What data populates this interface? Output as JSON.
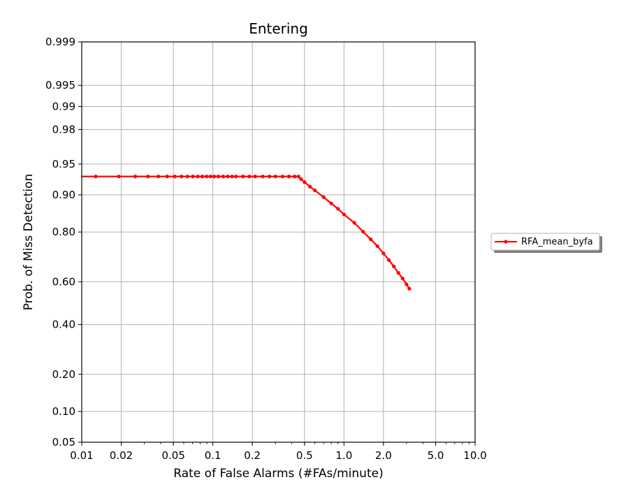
{
  "chart_data": {
    "type": "line",
    "title": "Entering",
    "xlabel": "Rate of False Alarms (#FAs/minute)",
    "ylabel": "Prob. of Miss Detection",
    "x_scale": "log",
    "y_scale": "normal-deviate",
    "xlim": [
      0.01,
      10.0
    ],
    "ylim": [
      0.05,
      0.999
    ],
    "x_ticks": [
      0.01,
      0.02,
      0.05,
      0.1,
      0.2,
      0.5,
      1.0,
      2.0,
      5.0,
      10.0
    ],
    "x_tick_labels": [
      "0.01",
      "0.02",
      "0.05",
      "0.1",
      "0.2",
      "0.5",
      "1.0",
      "2.0",
      "5.0",
      "10.0"
    ],
    "y_ticks": [
      0.05,
      0.1,
      0.2,
      0.4,
      0.6,
      0.8,
      0.9,
      0.95,
      0.98,
      0.99,
      0.995,
      0.999
    ],
    "y_tick_labels": [
      "0.05",
      "0.10",
      "0.20",
      "0.40",
      "0.60",
      "0.80",
      "0.90",
      "0.95",
      "0.98",
      "0.99",
      "0.995",
      "0.999"
    ],
    "grid": true,
    "legend": {
      "placement": "right",
      "entries": [
        "RFA_mean_byfa"
      ]
    },
    "series": [
      {
        "name": "RFA_mean_byfa",
        "color": "#ff0000",
        "marker": "dot",
        "points": [
          [
            0.0064,
            0.933
          ],
          [
            0.0128,
            0.933
          ],
          [
            0.0192,
            0.933
          ],
          [
            0.0256,
            0.933
          ],
          [
            0.032,
            0.933
          ],
          [
            0.0384,
            0.933
          ],
          [
            0.0448,
            0.933
          ],
          [
            0.0512,
            0.933
          ],
          [
            0.0576,
            0.933
          ],
          [
            0.064,
            0.933
          ],
          [
            0.0704,
            0.933
          ],
          [
            0.0768,
            0.933
          ],
          [
            0.0832,
            0.933
          ],
          [
            0.0896,
            0.933
          ],
          [
            0.096,
            0.933
          ],
          [
            0.1024,
            0.933
          ],
          [
            0.11,
            0.933
          ],
          [
            0.12,
            0.933
          ],
          [
            0.13,
            0.933
          ],
          [
            0.14,
            0.933
          ],
          [
            0.15,
            0.933
          ],
          [
            0.17,
            0.933
          ],
          [
            0.19,
            0.933
          ],
          [
            0.21,
            0.933
          ],
          [
            0.24,
            0.933
          ],
          [
            0.27,
            0.933
          ],
          [
            0.3,
            0.933
          ],
          [
            0.34,
            0.933
          ],
          [
            0.38,
            0.933
          ],
          [
            0.42,
            0.933
          ],
          [
            0.45,
            0.933
          ],
          [
            0.47,
            0.929
          ],
          [
            0.5,
            0.924
          ],
          [
            0.55,
            0.916
          ],
          [
            0.6,
            0.909
          ],
          [
            0.7,
            0.895
          ],
          [
            0.8,
            0.881
          ],
          [
            0.9,
            0.868
          ],
          [
            1.0,
            0.853
          ],
          [
            1.2,
            0.829
          ],
          [
            1.4,
            0.801
          ],
          [
            1.6,
            0.775
          ],
          [
            1.8,
            0.75
          ],
          [
            2.0,
            0.722
          ],
          [
            2.2,
            0.695
          ],
          [
            2.4,
            0.668
          ],
          [
            2.6,
            0.64
          ],
          [
            2.8,
            0.615
          ],
          [
            3.0,
            0.588
          ],
          [
            3.15,
            0.568
          ]
        ]
      }
    ]
  }
}
